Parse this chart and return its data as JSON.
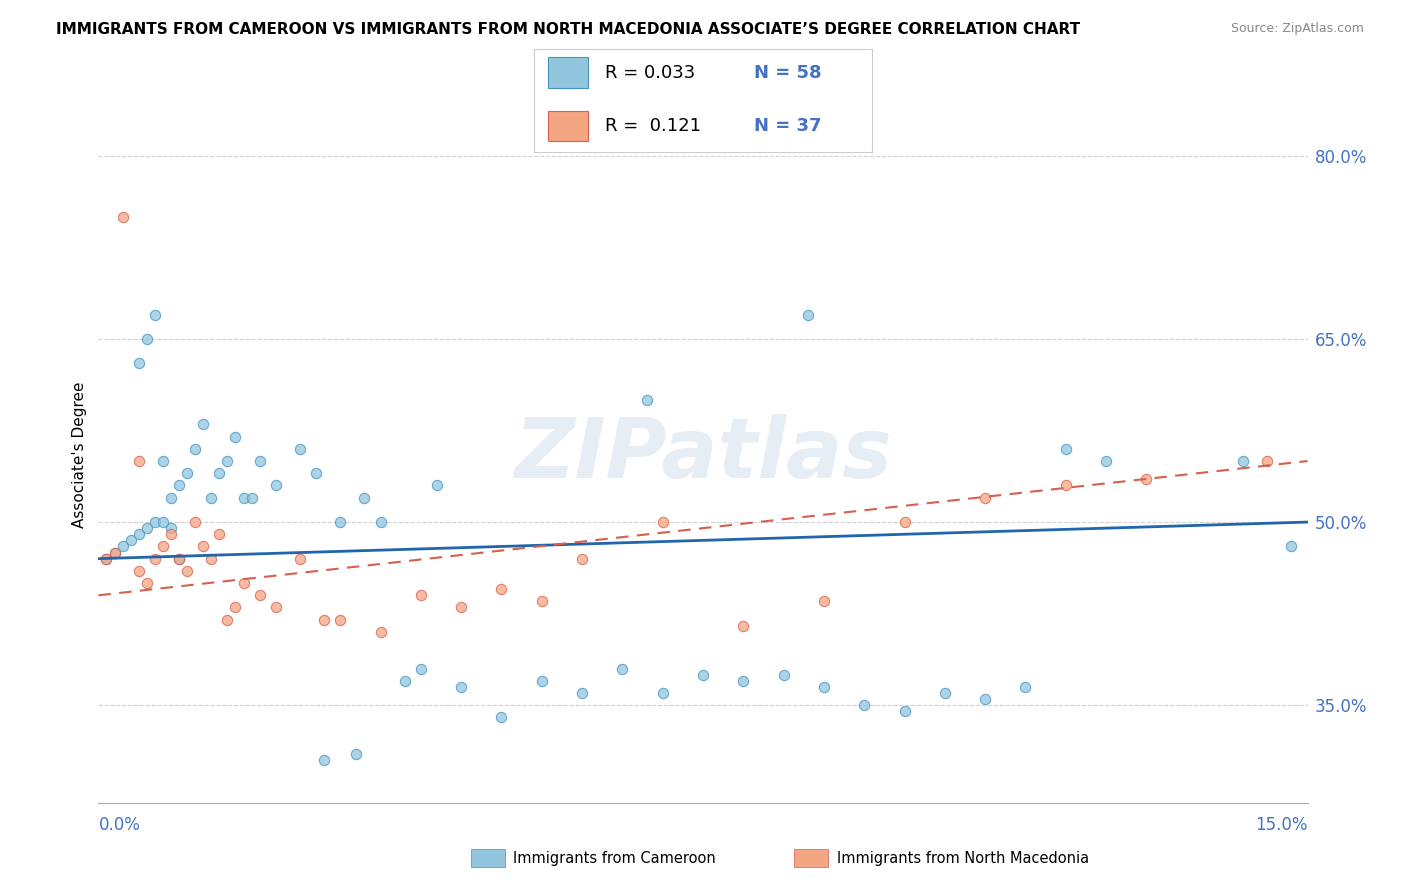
{
  "title": "IMMIGRANTS FROM CAMEROON VS IMMIGRANTS FROM NORTH MACEDONIA ASSOCIATE’S DEGREE CORRELATION CHART",
  "source": "Source: ZipAtlas.com",
  "ylabel": "Associate's Degree",
  "xmin": 0.0,
  "xmax": 15.0,
  "ymin": 27.0,
  "ymax": 84.0,
  "yticks": [
    35.0,
    50.0,
    65.0,
    80.0
  ],
  "watermark": "ZIPatlas",
  "blue_color": "#92c5de",
  "pink_color": "#f4a582",
  "blue_edge_color": "#4393c3",
  "pink_edge_color": "#d6604d",
  "blue_line_color": "#2166ac",
  "pink_line_color": "#d6604d",
  "blue_scatter_x": [
    0.1,
    0.2,
    0.3,
    0.4,
    0.5,
    0.6,
    0.7,
    0.8,
    0.9,
    1.0,
    0.5,
    0.6,
    0.7,
    0.8,
    0.9,
    1.0,
    1.1,
    1.2,
    1.3,
    1.4,
    1.5,
    1.6,
    1.7,
    1.8,
    2.0,
    2.2,
    2.5,
    2.7,
    3.0,
    3.3,
    3.5,
    3.8,
    4.0,
    4.5,
    5.0,
    5.5,
    6.0,
    6.5,
    7.0,
    7.5,
    8.0,
    8.5,
    9.0,
    9.5,
    10.0,
    10.5,
    11.0,
    11.5,
    12.0,
    12.5,
    3.2,
    2.8,
    1.9,
    4.2,
    6.8,
    8.8,
    14.2,
    14.8
  ],
  "blue_scatter_y": [
    47.0,
    47.5,
    48.0,
    48.5,
    49.0,
    49.5,
    50.0,
    50.0,
    49.5,
    47.0,
    63.0,
    65.0,
    67.0,
    55.0,
    52.0,
    53.0,
    54.0,
    56.0,
    58.0,
    52.0,
    54.0,
    55.0,
    57.0,
    52.0,
    55.0,
    53.0,
    56.0,
    54.0,
    50.0,
    52.0,
    50.0,
    37.0,
    38.0,
    36.5,
    34.0,
    37.0,
    36.0,
    38.0,
    36.0,
    37.5,
    37.0,
    37.5,
    36.5,
    35.0,
    34.5,
    36.0,
    35.5,
    36.5,
    56.0,
    55.0,
    31.0,
    30.5,
    52.0,
    53.0,
    60.0,
    67.0,
    55.0,
    48.0
  ],
  "pink_scatter_x": [
    0.1,
    0.2,
    0.3,
    0.5,
    0.6,
    0.7,
    0.8,
    0.9,
    1.0,
    1.1,
    1.2,
    1.3,
    1.4,
    1.5,
    1.6,
    1.7,
    1.8,
    2.0,
    2.2,
    2.5,
    2.8,
    3.0,
    3.5,
    4.0,
    4.5,
    5.0,
    5.5,
    6.0,
    7.0,
    8.0,
    9.0,
    10.0,
    11.0,
    12.0,
    13.0,
    14.5,
    0.5
  ],
  "pink_scatter_y": [
    47.0,
    47.5,
    75.0,
    46.0,
    45.0,
    47.0,
    48.0,
    49.0,
    47.0,
    46.0,
    50.0,
    48.0,
    47.0,
    49.0,
    42.0,
    43.0,
    45.0,
    44.0,
    43.0,
    47.0,
    42.0,
    42.0,
    41.0,
    44.0,
    43.0,
    44.5,
    43.5,
    47.0,
    50.0,
    41.5,
    43.5,
    50.0,
    52.0,
    53.0,
    53.5,
    55.0,
    55.0
  ],
  "blue_trend_x": [
    0.0,
    15.0
  ],
  "blue_trend_y": [
    47.0,
    50.0
  ],
  "pink_trend_x": [
    0.0,
    15.0
  ],
  "pink_trend_y": [
    44.0,
    55.0
  ]
}
